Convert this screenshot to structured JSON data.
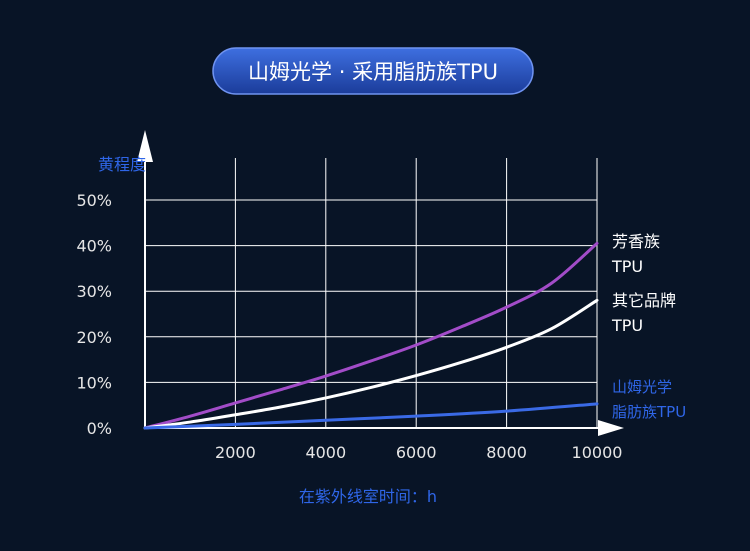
{
  "title": "山姆光学 · 采用脂肪族TPU",
  "colors": {
    "background": "#081426",
    "title_pill_top": "#3e6fe0",
    "title_pill_bottom": "#1b3c9a",
    "axis": "#ffffff",
    "grid": "#ffffff",
    "label_blue": "#2f66e8",
    "tick_text": "#e6e6e6"
  },
  "chart_data": {
    "type": "line",
    "xlabel": "在紫外线室时间：h",
    "ylabel": "黄程度",
    "xlim": [
      0,
      10000
    ],
    "ylim": [
      0,
      50
    ],
    "x_ticks": [
      2000,
      4000,
      6000,
      8000,
      10000
    ],
    "y_ticks": [
      0,
      10,
      20,
      30,
      40,
      50
    ],
    "y_tick_labels": [
      "0%",
      "10%",
      "20%",
      "30%",
      "40%",
      "50%"
    ],
    "grid": true,
    "series": [
      {
        "name": [
          "芳香族",
          "TPU"
        ],
        "color": "#a24cc8",
        "x": [
          0,
          1000,
          2000,
          3000,
          4000,
          5000,
          6000,
          7000,
          8000,
          9000,
          10000
        ],
        "y": [
          0,
          2.6,
          5.5,
          8.4,
          11.4,
          14.7,
          18.2,
          22.2,
          26.5,
          31.8,
          40.5
        ]
      },
      {
        "name": [
          "其它品牌",
          "TPU"
        ],
        "color": "#ffffff",
        "x": [
          0,
          1000,
          2000,
          3000,
          4000,
          5000,
          6000,
          7000,
          8000,
          9000,
          10000
        ],
        "y": [
          0,
          1.3,
          2.9,
          4.6,
          6.6,
          8.9,
          11.5,
          14.4,
          17.7,
          21.8,
          28
        ]
      },
      {
        "name": [
          "山姆光学",
          "脂肪族TPU"
        ],
        "color": "#3a6ae6",
        "x": [
          0,
          2000,
          4000,
          6000,
          8000,
          10000
        ],
        "y": [
          0,
          0.8,
          1.7,
          2.6,
          3.7,
          5.3
        ]
      }
    ]
  }
}
